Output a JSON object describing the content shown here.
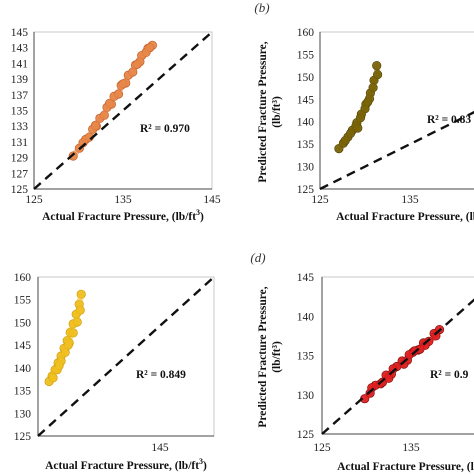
{
  "chart_data": [
    {
      "type": "scatter",
      "panel_label": "",
      "xlabel": "Actual Fracture Pressure, (lb/ft",
      "xlabel_sup": "3",
      "xlabel_tail": ")",
      "ylabel": "",
      "ylabel_line2": "",
      "xlim": [
        125,
        145
      ],
      "ylim": [
        125,
        145
      ],
      "xticks": [
        "125",
        "135",
        "145"
      ],
      "yticks": [
        "125",
        "127",
        "129",
        "131",
        "133",
        "135",
        "137",
        "139",
        "141",
        "143",
        "145"
      ],
      "annotation": "R² = 0.970",
      "marker_color": "#e8874a",
      "marker_stroke": "#c4622a",
      "series": [
        {
          "x": [
            129.4,
            130.1,
            130.8,
            131.6,
            132.4,
            133.2,
            134.0,
            134.8,
            135.6,
            136.4,
            137.1,
            137.8,
            138.3,
            131.2,
            132.0,
            132.9,
            133.7,
            134.5,
            135.3,
            136.1,
            136.9,
            137.6,
            130.5,
            131.9,
            133.5,
            135.0,
            136.6,
            138.0
          ],
          "y": [
            129.2,
            130.2,
            131.3,
            132.6,
            134.0,
            135.4,
            136.8,
            138.2,
            139.5,
            140.8,
            142.0,
            142.9,
            143.3,
            131.6,
            133.0,
            134.4,
            135.8,
            137.1,
            138.5,
            139.9,
            141.2,
            142.4,
            130.9,
            133.1,
            135.9,
            138.4,
            140.9,
            143.0
          ]
        }
      ]
    },
    {
      "type": "scatter",
      "panel_label": "(b)",
      "xlabel": "Actual Fracture Pressure, (lb/ft",
      "xlabel_sup": "3",
      "xlabel_tail": ")",
      "ylabel": "Predicted Fracture Pressure,",
      "ylabel_line2": "(lb/ft³)",
      "xlim": [
        125,
        145
      ],
      "ylim": [
        125,
        160
      ],
      "xticks": [
        "125",
        "135"
      ],
      "yticks": [
        "125",
        "130",
        "135",
        "140",
        "145",
        "150",
        "155",
        "160"
      ],
      "annotation": "R² = 0.83",
      "marker_color": "#7a6408",
      "marker_stroke": "#5a4a05",
      "series": [
        {
          "x": [
            127.1,
            127.6,
            128.1,
            128.6,
            129.1,
            129.6,
            130.1,
            130.6,
            131.0,
            131.3,
            127.8,
            128.4,
            129.0,
            129.5,
            130.0,
            130.5,
            130.9,
            131.4,
            129.2,
            130.3
          ],
          "y": [
            134.0,
            135.2,
            136.6,
            138.1,
            139.8,
            141.7,
            143.9,
            146.4,
            149.2,
            152.5,
            135.8,
            137.4,
            139.1,
            140.9,
            142.9,
            145.1,
            147.6,
            150.5,
            138.6,
            144.4
          ]
        }
      ]
    },
    {
      "type": "scatter",
      "panel_label": "",
      "xlabel": "Actual Fracture Pressure, (lb/ft",
      "xlabel_sup": "3",
      "xlabel_tail": ")",
      "ylabel": "",
      "ylabel_line2": "",
      "xlim": [
        125,
        160
      ],
      "ylim": [
        125,
        160
      ],
      "xticks": [
        "145"
      ],
      "yticks": [
        "125",
        "130",
        "135",
        "140",
        "145",
        "150",
        "155",
        "160"
      ],
      "annotation": "R² = 0.849",
      "marker_color": "#f0c020",
      "marker_stroke": "#d3a10c",
      "series": [
        {
          "x": [
            127.2,
            127.8,
            128.4,
            129.0,
            129.6,
            130.2,
            130.8,
            131.4,
            132.0,
            132.6,
            133.2,
            133.6,
            128.0,
            128.8,
            129.6,
            130.4,
            131.2,
            132.0,
            132.8,
            133.4,
            129.2,
            131.0
          ],
          "y": [
            137.0,
            138.2,
            139.6,
            141.1,
            142.6,
            144.3,
            146.0,
            147.8,
            149.7,
            151.8,
            154.0,
            156.2,
            137.8,
            139.6,
            141.5,
            143.4,
            145.5,
            147.7,
            150.1,
            152.7,
            140.5,
            145.0
          ]
        }
      ]
    },
    {
      "type": "scatter",
      "panel_label": "(d)",
      "xlabel": "Actual Fracture Pressure, (lb/ft",
      "xlabel_sup": "3",
      "xlabel_tail": ")",
      "ylabel": "Predicted Fracture Pressure,",
      "ylabel_line2": "(lb/ft³)",
      "xlim": [
        125,
        145
      ],
      "ylim": [
        125,
        145
      ],
      "xticks": [
        "125",
        "135"
      ],
      "yticks": [
        "125",
        "130",
        "135",
        "140",
        "145"
      ],
      "annotation": "R² = 0.9",
      "marker_color": "#e02020",
      "marker_stroke": "#8a0d0d",
      "series": [
        {
          "x": [
            129.8,
            130.4,
            131.0,
            131.6,
            132.2,
            132.8,
            133.4,
            134.0,
            134.6,
            135.2,
            135.8,
            136.4,
            137.0,
            137.6,
            138.2,
            130.6,
            131.8,
            133.0,
            134.2,
            135.4,
            136.6,
            137.8,
            132.5,
            134.8,
            136.0
          ],
          "y": [
            129.5,
            130.2,
            131.2,
            131.4,
            132.5,
            132.6,
            133.6,
            134.3,
            134.4,
            135.4,
            135.7,
            136.6,
            136.8,
            137.8,
            138.3,
            130.9,
            131.6,
            133.3,
            133.9,
            135.6,
            136.3,
            137.5,
            132.1,
            135.1,
            135.8
          ]
        }
      ]
    }
  ]
}
